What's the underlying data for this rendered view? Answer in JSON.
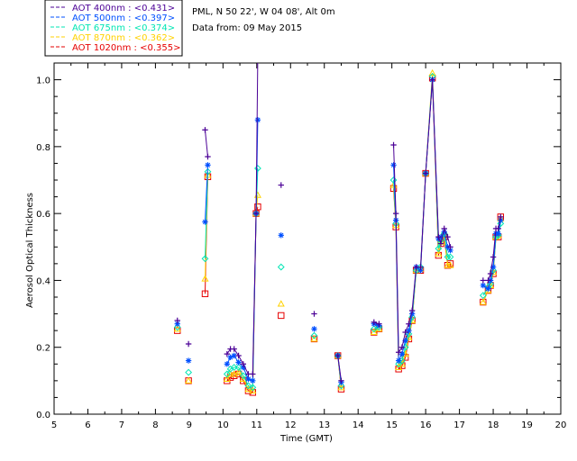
{
  "chart_data": {
    "type": "scatter",
    "info_line1": "PML, N 50 22', W 04 08', Alt 0m",
    "info_line2": "Data from: 09 May 2015",
    "xlabel": "Time (GMT)",
    "ylabel": "Aerosol Optical Thickness",
    "xlim": [
      5,
      20
    ],
    "ylim": [
      0,
      1.05
    ],
    "xticks": [
      5,
      6,
      7,
      8,
      9,
      10,
      11,
      12,
      13,
      14,
      15,
      16,
      17,
      18,
      19,
      20
    ],
    "yticks": [
      0.0,
      0.2,
      0.4,
      0.6,
      0.8,
      1.0
    ],
    "ytick_labels": [
      "0.0",
      "0.2",
      "0.4",
      "0.6",
      "0.8",
      "1.0"
    ],
    "series": [
      {
        "name": "AOT  400nm : <0.431>",
        "color": "#4b0096",
        "marker": "plus",
        "x": [
          8.65,
          8.98,
          9.47,
          9.55,
          10.12,
          10.22,
          10.33,
          10.46,
          10.6,
          10.75,
          10.88,
          10.98,
          11.03,
          11.72,
          12.7,
          13.4,
          13.5,
          14.47,
          14.62,
          15.05,
          15.12,
          15.2,
          15.3,
          15.4,
          15.5,
          15.6,
          15.72,
          15.85,
          16.0,
          16.2,
          16.38,
          16.45,
          16.55,
          16.65,
          16.73,
          17.7,
          17.85,
          17.92,
          18.0,
          18.08,
          18.15,
          18.22
        ],
        "values": [
          0.28,
          0.21,
          0.85,
          0.77,
          0.18,
          0.195,
          0.195,
          0.175,
          0.15,
          0.12,
          0.12,
          0.6,
          1.07,
          0.685,
          0.3,
          0.175,
          0.1,
          0.275,
          0.27,
          0.805,
          0.6,
          0.185,
          0.2,
          0.245,
          0.27,
          0.31,
          0.44,
          0.44,
          0.72,
          1.0,
          0.53,
          0.51,
          0.555,
          0.53,
          0.5,
          0.4,
          0.4,
          0.42,
          0.47,
          0.555,
          0.555,
          0.59
        ]
      },
      {
        "name": "AOT  500nm : <0.397>",
        "color": "#0050ff",
        "marker": "asterisk",
        "x": [
          8.65,
          8.98,
          9.47,
          9.55,
          10.12,
          10.22,
          10.33,
          10.46,
          10.6,
          10.75,
          10.88,
          10.98,
          11.03,
          11.72,
          12.7,
          13.4,
          13.5,
          14.47,
          14.62,
          15.05,
          15.12,
          15.2,
          15.3,
          15.4,
          15.5,
          15.6,
          15.72,
          15.85,
          16.0,
          16.2,
          16.38,
          16.45,
          16.55,
          16.65,
          16.73,
          17.7,
          17.85,
          17.92,
          18.0,
          18.08,
          18.15,
          18.22
        ],
        "values": [
          0.27,
          0.16,
          0.575,
          0.745,
          0.15,
          0.17,
          0.175,
          0.155,
          0.14,
          0.105,
          0.1,
          0.6,
          0.88,
          0.535,
          0.255,
          0.175,
          0.095,
          0.27,
          0.265,
          0.745,
          0.58,
          0.16,
          0.18,
          0.22,
          0.25,
          0.3,
          0.44,
          0.43,
          0.72,
          1.0,
          0.525,
          0.53,
          0.545,
          0.5,
          0.49,
          0.385,
          0.375,
          0.4,
          0.44,
          0.54,
          0.54,
          0.58
        ]
      },
      {
        "name": "AOT  675nm : <0.374>",
        "color": "#00e6b4",
        "marker": "diamond",
        "x": [
          8.65,
          8.98,
          9.47,
          9.55,
          10.12,
          10.22,
          10.33,
          10.46,
          10.6,
          10.75,
          10.88,
          10.98,
          11.03,
          11.72,
          12.7,
          13.4,
          13.5,
          14.47,
          14.62,
          15.05,
          15.12,
          15.2,
          15.3,
          15.4,
          15.5,
          15.6,
          15.72,
          15.85,
          16.0,
          16.2,
          16.38,
          16.45,
          16.55,
          16.65,
          16.73,
          17.7,
          17.85,
          17.92,
          18.0,
          18.08,
          18.15,
          18.22
        ],
        "values": [
          0.26,
          0.125,
          0.465,
          0.725,
          0.12,
          0.135,
          0.14,
          0.14,
          0.115,
          0.085,
          0.08,
          0.6,
          0.735,
          0.44,
          0.235,
          0.175,
          0.085,
          0.255,
          0.26,
          0.7,
          0.57,
          0.15,
          0.16,
          0.2,
          0.24,
          0.29,
          0.43,
          0.44,
          0.72,
          1.01,
          0.495,
          0.52,
          0.54,
          0.47,
          0.47,
          0.355,
          0.38,
          0.39,
          0.43,
          0.53,
          0.535,
          0.57
        ]
      },
      {
        "name": "AOT  870nm : <0.362>",
        "color": "#ffd200",
        "marker": "triangle",
        "x": [
          8.65,
          8.98,
          9.47,
          9.55,
          10.12,
          10.22,
          10.33,
          10.46,
          10.6,
          10.75,
          10.88,
          10.98,
          11.03,
          11.72,
          12.7,
          13.4,
          13.5,
          14.47,
          14.62,
          15.05,
          15.12,
          15.2,
          15.3,
          15.4,
          15.5,
          15.6,
          15.72,
          15.85,
          16.0,
          16.2,
          16.38,
          16.45,
          16.55,
          16.65,
          16.73,
          17.7,
          17.85,
          17.92,
          18.0,
          18.08,
          18.15,
          18.22
        ],
        "values": [
          0.255,
          0.1,
          0.405,
          0.715,
          0.105,
          0.12,
          0.12,
          0.125,
          0.105,
          0.075,
          0.07,
          0.6,
          0.655,
          0.33,
          0.225,
          0.175,
          0.08,
          0.245,
          0.255,
          0.685,
          0.565,
          0.14,
          0.15,
          0.18,
          0.23,
          0.28,
          0.43,
          0.435,
          0.72,
          1.02,
          0.48,
          0.515,
          0.535,
          0.445,
          0.445,
          0.335,
          0.37,
          0.385,
          0.425,
          0.53,
          0.535,
          0.585
        ]
      },
      {
        "name": "AOT 1020nm : <0.355>",
        "color": "#e60000",
        "marker": "square",
        "x": [
          8.65,
          8.98,
          9.47,
          9.55,
          10.12,
          10.22,
          10.33,
          10.46,
          10.6,
          10.75,
          10.88,
          10.98,
          11.03,
          11.72,
          12.7,
          13.4,
          13.5,
          14.47,
          14.62,
          15.05,
          15.12,
          15.2,
          15.3,
          15.4,
          15.5,
          15.6,
          15.72,
          15.85,
          16.0,
          16.2,
          16.38,
          16.45,
          16.55,
          16.65,
          16.73,
          17.7,
          17.85,
          17.92,
          18.0,
          18.08,
          18.15,
          18.22
        ],
        "values": [
          0.25,
          0.1,
          0.36,
          0.71,
          0.1,
          0.11,
          0.115,
          0.12,
          0.1,
          0.07,
          0.065,
          0.6,
          0.62,
          0.295,
          0.225,
          0.175,
          0.075,
          0.245,
          0.255,
          0.675,
          0.56,
          0.135,
          0.145,
          0.17,
          0.225,
          0.28,
          0.43,
          0.43,
          0.72,
          1.005,
          0.475,
          0.51,
          0.53,
          0.445,
          0.45,
          0.335,
          0.37,
          0.385,
          0.42,
          0.53,
          0.53,
          0.59
        ]
      }
    ]
  }
}
